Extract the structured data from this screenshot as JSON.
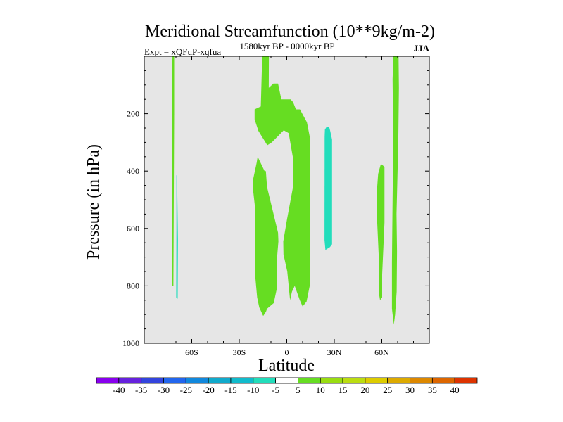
{
  "chart_data": {
    "type": "contour",
    "title": "Meridional Streamfunction (10**9kg/m-2)",
    "subtitle_left": "Expt = xQFuP-xqfua",
    "subtitle_center": "1580kyr BP - 0000kyr BP",
    "subtitle_right": "JJA",
    "xlabel": "Latitude",
    "ylabel": "Pressure (in hPa)",
    "xlim": [
      -90,
      90
    ],
    "ylim": [
      1000,
      0
    ],
    "x_ticks": [
      {
        "value": -60,
        "label": "60S"
      },
      {
        "value": -30,
        "label": "30S"
      },
      {
        "value": 0,
        "label": "0"
      },
      {
        "value": 30,
        "label": "30N"
      },
      {
        "value": 60,
        "label": "60N"
      }
    ],
    "y_ticks": [
      {
        "value": 200,
        "label": "200"
      },
      {
        "value": 400,
        "label": "400"
      },
      {
        "value": 600,
        "label": "600"
      },
      {
        "value": 800,
        "label": "800"
      },
      {
        "value": 1000,
        "label": "1000"
      }
    ],
    "background_fill": "#e6e6e6",
    "regions": [
      {
        "level": "5 to 10",
        "color": "#66dd22",
        "points": [
          [
            -72.2,
            0
          ],
          [
            -71.1,
            0
          ],
          [
            -71.1,
            195
          ],
          [
            -71.6,
            800
          ],
          [
            -72.3,
            800
          ],
          [
            -72.6,
            130
          ]
        ]
      },
      {
        "level": "-10 to -5",
        "color": "#22ddbb",
        "points": [
          [
            -69.7,
            415
          ],
          [
            -69.3,
            415
          ],
          [
            -68.7,
            640
          ],
          [
            -68.9,
            845
          ],
          [
            -69.8,
            840
          ],
          [
            -69.7,
            600
          ]
        ]
      },
      {
        "level": "5 to 10",
        "color": "#66dd22",
        "points": [
          [
            -15.5,
            0
          ],
          [
            -11.3,
            0
          ],
          [
            -11.4,
            110
          ],
          [
            -8.4,
            95
          ],
          [
            -5.5,
            95
          ],
          [
            -4,
            135
          ],
          [
            -3.4,
            150
          ],
          [
            2.4,
            150
          ],
          [
            4,
            160
          ],
          [
            5.8,
            185
          ],
          [
            8.3,
            185
          ],
          [
            12.7,
            230
          ],
          [
            14.5,
            280
          ],
          [
            14.5,
            800
          ],
          [
            12.5,
            855
          ],
          [
            10,
            872
          ],
          [
            8.2,
            850
          ],
          [
            5,
            800
          ],
          [
            3.3,
            820
          ],
          [
            2.1,
            850
          ],
          [
            0.3,
            750
          ],
          [
            -2.1,
            690
          ],
          [
            -2.2,
            645
          ],
          [
            0.1,
            570
          ],
          [
            3.8,
            460
          ],
          [
            3.8,
            350
          ],
          [
            1.2,
            268
          ],
          [
            -1.9,
            258
          ],
          [
            -9.4,
            300
          ],
          [
            -12.3,
            310
          ],
          [
            -17.9,
            260
          ],
          [
            -20.3,
            220
          ],
          [
            -20.3,
            185
          ],
          [
            -16.4,
            175
          ]
        ]
      },
      {
        "level": "5 to 10",
        "color": "#66dd22",
        "points": [
          [
            -18.4,
            350
          ],
          [
            -14,
            400
          ],
          [
            -13.2,
            400
          ],
          [
            -12.5,
            455
          ],
          [
            -5.5,
            615
          ],
          [
            -5.3,
            645
          ],
          [
            -6.2,
            705
          ],
          [
            -6.3,
            810
          ],
          [
            -8.2,
            860
          ],
          [
            -12.5,
            880
          ],
          [
            -13.1,
            890
          ],
          [
            -14.9,
            905
          ],
          [
            -17.4,
            875
          ],
          [
            -18.7,
            840
          ],
          [
            -19.2,
            810
          ],
          [
            -20.2,
            750
          ],
          [
            -20.2,
            520
          ],
          [
            -21.3,
            465
          ],
          [
            -21.3,
            430
          ],
          [
            -19,
            370
          ]
        ]
      },
      {
        "level": "-10 to -5",
        "color": "#22ddbb",
        "points": [
          [
            24.1,
            255
          ],
          [
            25.3,
            245
          ],
          [
            26.7,
            245
          ],
          [
            27.4,
            260
          ],
          [
            28.6,
            290
          ],
          [
            28.6,
            655
          ],
          [
            27.3,
            665
          ],
          [
            24.4,
            675
          ],
          [
            23.8,
            640
          ],
          [
            23.9,
            280
          ]
        ]
      },
      {
        "level": "5 to 10",
        "color": "#66dd22",
        "points": [
          [
            57.7,
            410
          ],
          [
            58.4,
            395
          ],
          [
            59.4,
            375
          ],
          [
            61.7,
            385
          ],
          [
            61.7,
            580
          ],
          [
            60.2,
            760
          ],
          [
            60.2,
            840
          ],
          [
            58.9,
            850
          ],
          [
            58.3,
            830
          ],
          [
            58.1,
            700
          ],
          [
            57,
            570
          ],
          [
            57,
            460
          ]
        ]
      },
      {
        "level": "5 to 10",
        "color": "#66dd22",
        "points": [
          [
            67.3,
            0
          ],
          [
            70.6,
            0
          ],
          [
            70.8,
            110
          ],
          [
            70.4,
            300
          ],
          [
            69.3,
            550
          ],
          [
            69.6,
            680
          ],
          [
            69.4,
            820
          ],
          [
            68.4,
            900
          ],
          [
            67.6,
            935
          ],
          [
            66.4,
            880
          ],
          [
            66.4,
            720
          ],
          [
            66.8,
            500
          ],
          [
            67.2,
            300
          ],
          [
            66.8,
            80
          ]
        ]
      }
    ],
    "colorbar": {
      "labels": [
        "-40",
        "-35",
        "-30",
        "-25",
        "-20",
        "-15",
        "-10",
        "-5",
        "5",
        "10",
        "15",
        "20",
        "25",
        "30",
        "35",
        "40"
      ],
      "colors": [
        "#8800ee",
        "#6622dd",
        "#3344dd",
        "#2266ee",
        "#1188dd",
        "#11aacc",
        "#11bbcc",
        "#22ddbb",
        "#ffffff",
        "#66dd22",
        "#99dd11",
        "#bbdd11",
        "#ddcc00",
        "#ddaa00",
        "#dd8800",
        "#dd6600",
        "#dd3300"
      ]
    }
  }
}
